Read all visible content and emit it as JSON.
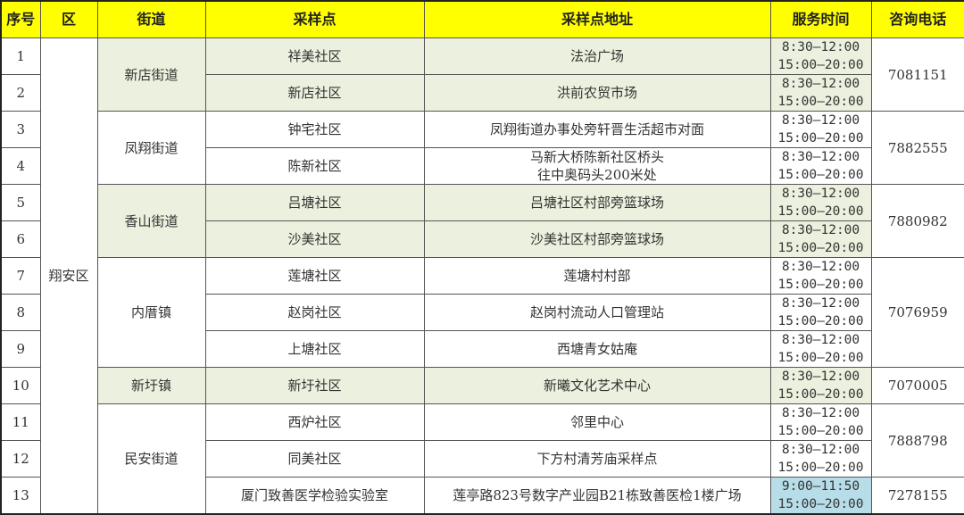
{
  "headers": [
    "序号",
    "区",
    "街道",
    "采样点",
    "采样点地址",
    "服务时间",
    "咨询电话"
  ],
  "district": "翔安区",
  "colors": {
    "header": "#ffff00",
    "highlight_green": "#ebf1de",
    "highlight_blue": "#b7dde8"
  },
  "streets": [
    {
      "name": "新店街道",
      "highlight": true,
      "sites": [
        {
          "no": "1",
          "point": "祥美社区",
          "address": "法治广场",
          "time": [
            "8:30—12:00",
            "15:00—20:00"
          ]
        },
        {
          "no": "2",
          "point": "新店社区",
          "address": "洪前农贸市场",
          "time": [
            "8:30—12:00",
            "15:00—20:00"
          ]
        }
      ]
    },
    {
      "name": "凤翔街道",
      "highlight": false,
      "sites": [
        {
          "no": "3",
          "point": "钟宅社区",
          "address": "凤翔街道办事处旁轩晋生活超市对面",
          "time": [
            "8:30—12:00",
            "15:00—20:00"
          ]
        },
        {
          "no": "4",
          "point": "陈新社区",
          "address": "马新大桥陈新社区桥头\n往中奥码头200米处",
          "time": [
            "8:30—12:00",
            "15:00—20:00"
          ]
        }
      ]
    },
    {
      "name": "香山街道",
      "highlight": true,
      "sites": [
        {
          "no": "5",
          "point": "吕塘社区",
          "address": "吕塘社区村部旁篮球场",
          "time": [
            "8:30—12:00",
            "15:00—20:00"
          ]
        },
        {
          "no": "6",
          "point": "沙美社区",
          "address": "沙美社区村部旁篮球场",
          "time": [
            "8:30—12:00",
            "15:00—20:00"
          ]
        }
      ]
    },
    {
      "name": "内厝镇",
      "highlight": false,
      "sites": [
        {
          "no": "7",
          "point": "莲塘社区",
          "address": "莲塘村村部",
          "time": [
            "8:30—12:00",
            "15:00—20:00"
          ]
        },
        {
          "no": "8",
          "point": "赵岗社区",
          "address": "赵岗村流动人口管理站",
          "time": [
            "8:30—12:00",
            "15:00—20:00"
          ]
        },
        {
          "no": "9",
          "point": "上塘社区",
          "address": "西塘青女姑庵",
          "time": [
            "8:30—12:00",
            "15:00—20:00"
          ]
        }
      ]
    },
    {
      "name": "新圩镇",
      "highlight": true,
      "sites": [
        {
          "no": "10",
          "point": "新圩社区",
          "address": "新曦文化艺术中心",
          "time": [
            "8:30—12:00",
            "15:00—20:00"
          ]
        }
      ]
    },
    {
      "name": "民安街道",
      "highlight": false,
      "sites": [
        {
          "no": "11",
          "point": "西炉社区",
          "address": "邻里中心",
          "time": [
            "8:30—12:00",
            "15:00—20:00"
          ]
        },
        {
          "no": "12",
          "point": "同美社区",
          "address": "下方村清芳庙采样点",
          "time": [
            "8:30—12:00",
            "15:00—20:00"
          ]
        },
        {
          "no": "13",
          "point": "厦门致善医学检验实验室",
          "address": "莲亭路823号数字产业园B21栋致善医检1楼广场",
          "time": [
            "9:00—11:50",
            "15:00—20:00"
          ],
          "time_highlight": "blue"
        }
      ]
    }
  ],
  "phones": [
    {
      "number": "7081151",
      "first": "1",
      "last": "2"
    },
    {
      "number": "7882555",
      "first": "3",
      "last": "4"
    },
    {
      "number": "7880982",
      "first": "5",
      "last": "6"
    },
    {
      "number": "7076959",
      "first": "7",
      "last": "9"
    },
    {
      "number": "7070005",
      "first": "10",
      "last": "10"
    },
    {
      "number": "7888798",
      "first": "11",
      "last": "12"
    },
    {
      "number": "7278155",
      "first": "13",
      "last": "13"
    }
  ]
}
